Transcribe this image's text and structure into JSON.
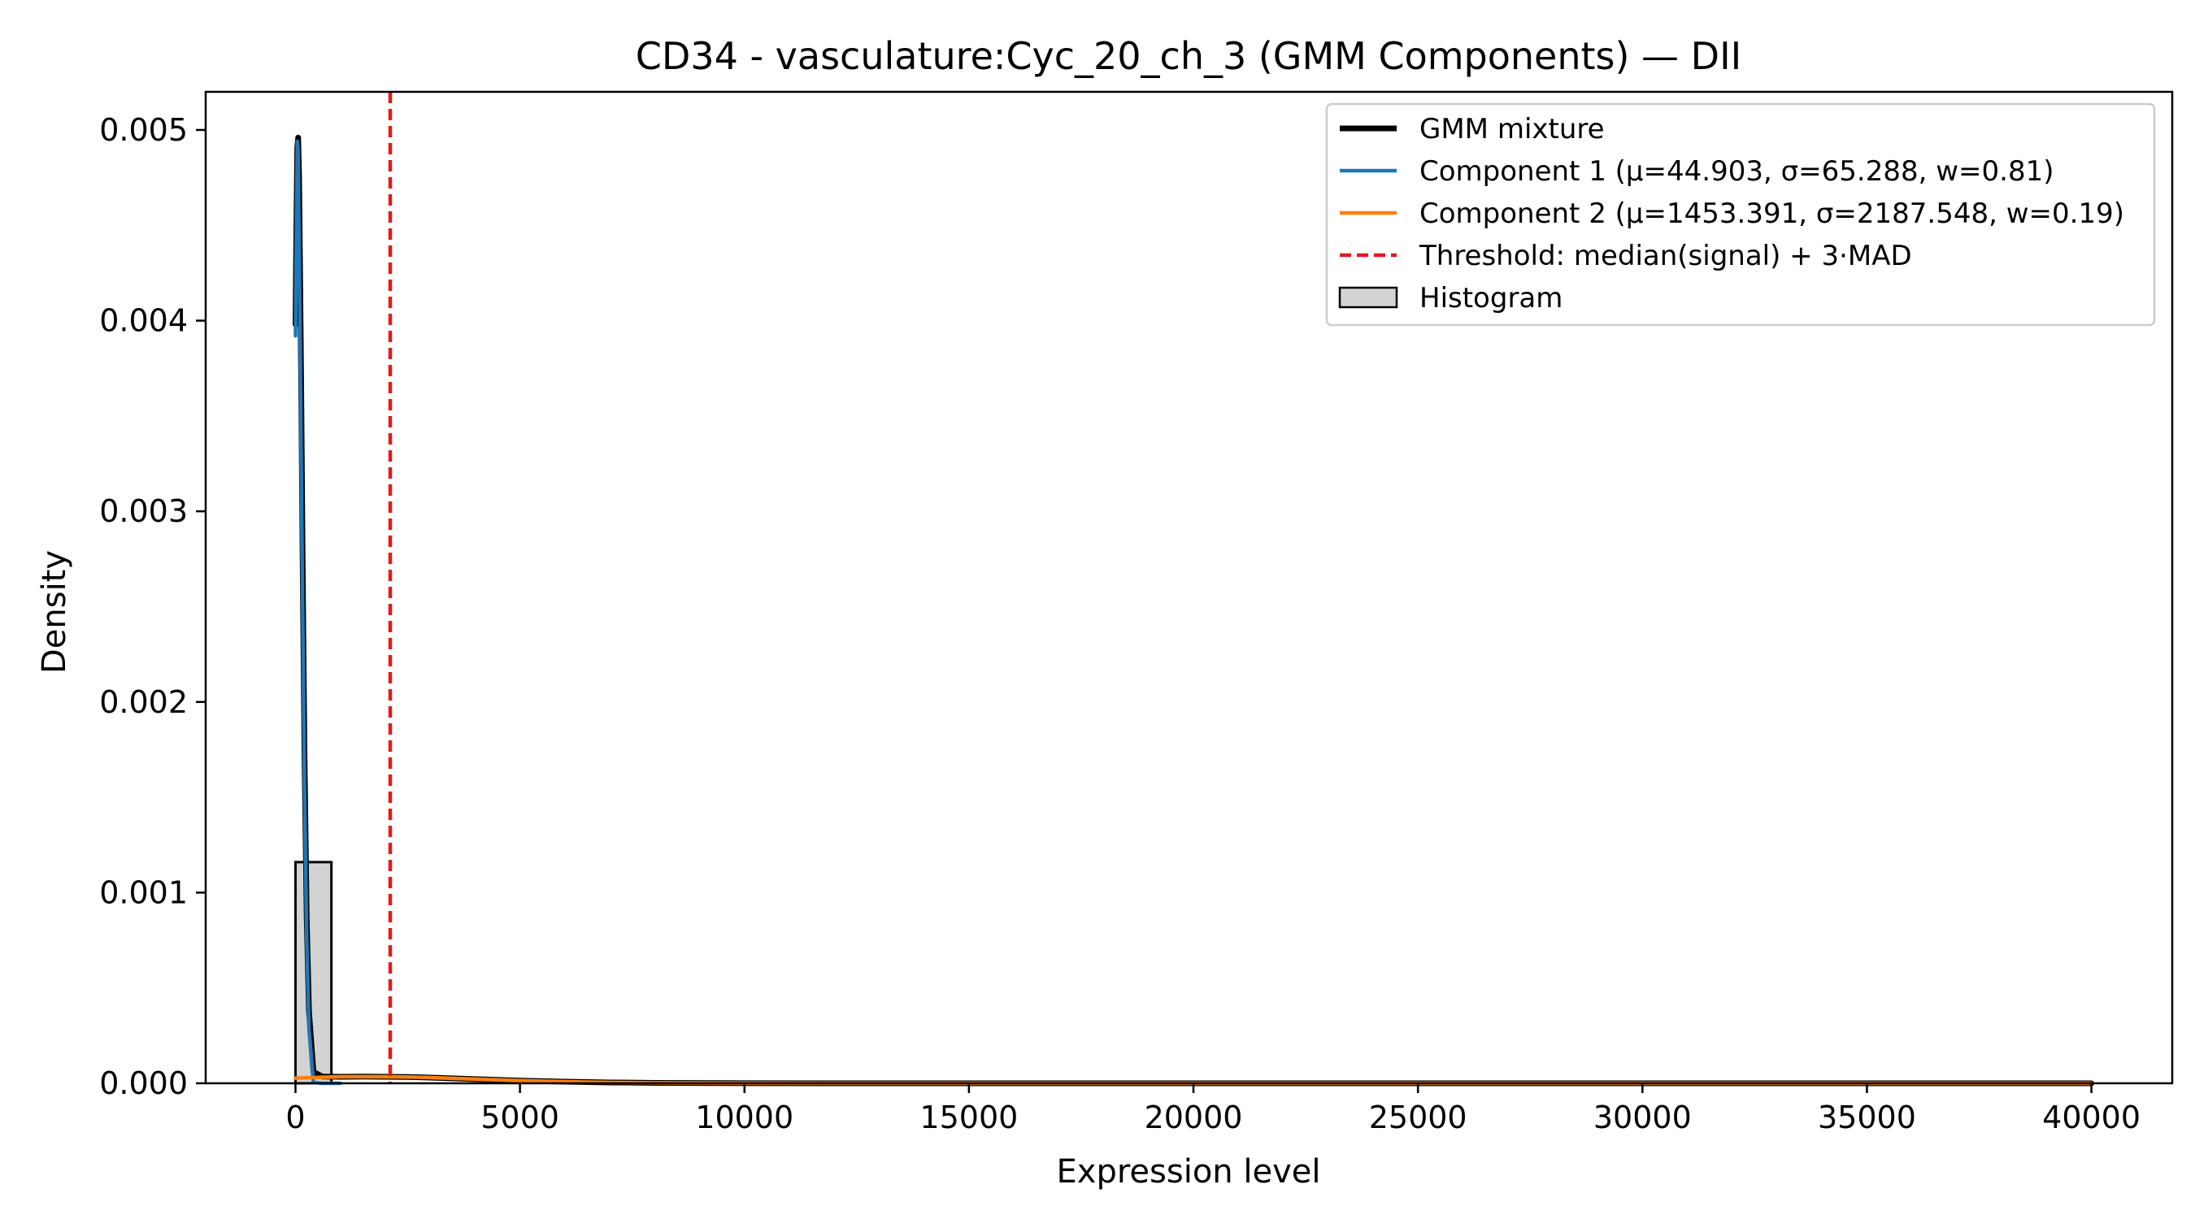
{
  "chart_data": {
    "type": "line",
    "title": "CD34 - vasculature:Cyc_20_ch_3 (GMM Components) — DII",
    "xlabel": "Expression level",
    "ylabel": "Density",
    "xlim": [
      -2000,
      41800
    ],
    "ylim": [
      0,
      0.0052
    ],
    "xticks": [
      0,
      5000,
      10000,
      15000,
      20000,
      25000,
      30000,
      35000,
      40000
    ],
    "yticks": [
      0.0,
      0.001,
      0.002,
      0.003,
      0.004,
      0.005
    ],
    "ytick_labels": [
      "0.000",
      "0.001",
      "0.002",
      "0.003",
      "0.004",
      "0.005"
    ],
    "legend_position": "top-right",
    "grid": false,
    "histogram": {
      "name": "Histogram",
      "bin_edges": [
        0,
        800
      ],
      "values": [
        0.00116
      ],
      "color": "#d3d3d3",
      "edge_color": "#000000"
    },
    "threshold": {
      "name": "Threshold: median(signal) + 3·MAD",
      "x": 2110,
      "color": "#e31a1c"
    },
    "series": [
      {
        "name": "GMM mixture",
        "color": "#000000",
        "x": [
          0,
          20,
          40,
          60,
          80,
          100,
          130,
          160,
          200,
          250,
          300,
          400,
          600,
          1000,
          1500,
          2000,
          2500,
          3000,
          4000,
          5000,
          6000,
          7000,
          8000,
          10000,
          15000,
          20000,
          30000,
          40000
        ],
        "y": [
          0.00398,
          0.00448,
          0.00491,
          0.00496,
          0.00476,
          0.00432,
          0.00358,
          0.00273,
          0.00174,
          0.00087,
          0.00038,
          6e-05,
          3.5e-05,
          3.4e-05,
          3.5e-05,
          3.4e-05,
          3.3e-05,
          3e-05,
          2.2e-05,
          1.4e-05,
          8.5e-06,
          4.5e-06,
          2.2e-06,
          4e-07,
          0.0,
          0.0,
          0.0,
          0.0
        ]
      },
      {
        "name": "Component 1 (μ=44.903, σ=65.288, w=0.81)",
        "color": "#1f77b4",
        "x": [
          0,
          20,
          40,
          60,
          80,
          100,
          130,
          160,
          200,
          250,
          300,
          400,
          600,
          1000
        ],
        "y": [
          0.00392,
          0.00446,
          0.00494,
          0.00489,
          0.00442,
          0.00398,
          0.0032,
          0.0025,
          0.00157,
          0.00076,
          0.00029,
          4e-06,
          0.0,
          0.0
        ]
      },
      {
        "name": "Component 2 (μ=1453.391, σ=2187.548, w=0.19)",
        "color": "#ff7f0e",
        "x": [
          0,
          500,
          1000,
          1500,
          2000,
          2500,
          3000,
          4000,
          5000,
          6000,
          7000,
          8000,
          10000,
          15000,
          20000,
          30000,
          40000
        ],
        "y": [
          2.7e-05,
          3.1e-05,
          3.4e-05,
          3.46e-05,
          3.4e-05,
          3.3e-05,
          3e-05,
          2.2e-05,
          1.4e-05,
          8.5e-06,
          4.5e-06,
          2.2e-06,
          4e-07,
          0.0,
          0.0,
          0.0,
          0.0
        ]
      }
    ]
  }
}
